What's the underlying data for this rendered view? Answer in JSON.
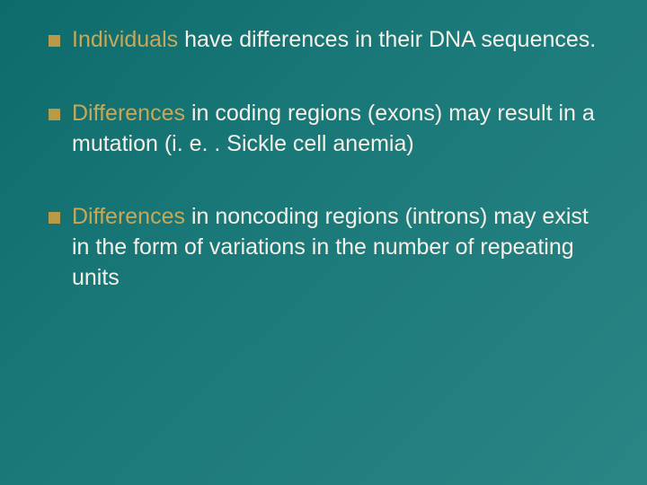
{
  "slide": {
    "background_gradient": [
      "#0d6b6b",
      "#1a7878",
      "#2a8585"
    ],
    "text_color": "#f5f0e8",
    "emphasis_color": "#c8a858",
    "bullet_color": "#b89a4a",
    "bullet_size": 13,
    "font_family": "Verdana",
    "font_size": 25,
    "line_height": 1.35,
    "bullets": [
      {
        "lead": "Individuals ",
        "rest": "have differences in their DNA sequences."
      },
      {
        "lead": "Differences ",
        "rest": "in coding regions (exons) may result in a mutation (i. e. . Sickle cell anemia)"
      },
      {
        "lead": "Differences ",
        "rest": "in noncoding regions (introns) may exist in the form of variations in the number of repeating units"
      }
    ]
  }
}
